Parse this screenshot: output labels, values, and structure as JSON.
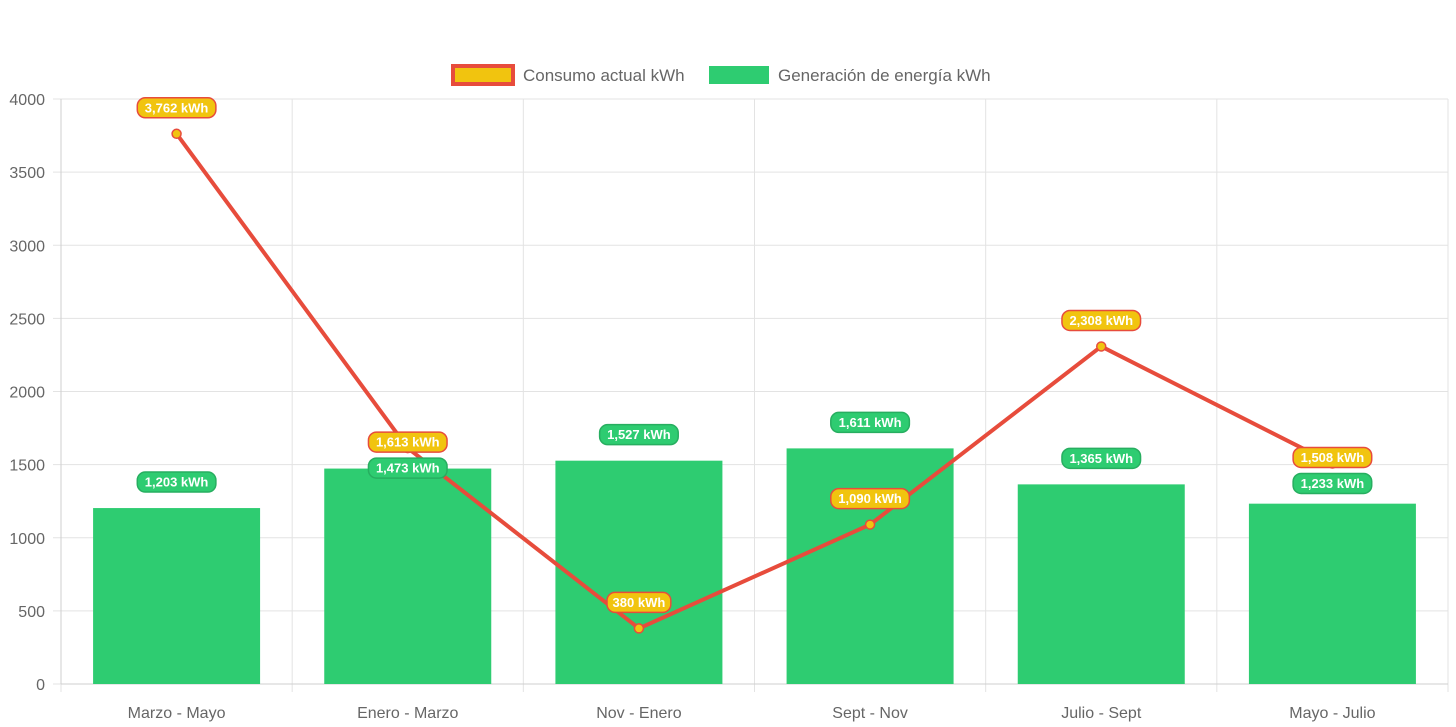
{
  "chart_data": {
    "type": "bar",
    "categories": [
      "Marzo - Mayo",
      "Enero - Marzo",
      "Nov - Enero",
      "Sept - Nov",
      "Julio - Sept",
      "Mayo - Julio"
    ],
    "series": [
      {
        "name": "Consumo actual kWh",
        "type": "line",
        "values": [
          3762,
          1613,
          380,
          1090,
          2308,
          1508
        ],
        "labels": [
          "3,762 kWh",
          "1,613 kWh",
          "380 kWh",
          "1,090 kWh",
          "2,308 kWh",
          "1,508 kWh"
        ],
        "color": "#e74c3c",
        "fill_color": "#f1c40f"
      },
      {
        "name": "Generación de energía kWh",
        "type": "bar",
        "values": [
          1203,
          1473,
          1527,
          1611,
          1365,
          1233
        ],
        "labels": [
          "1,203 kWh",
          "1,473 kWh",
          "1,527 kWh",
          "1,611 kWh",
          "1,365 kWh",
          "1,233 kWh"
        ],
        "color": "#2ecc71"
      }
    ],
    "ylim": [
      0,
      4000
    ],
    "yticks": [
      0,
      500,
      1000,
      1500,
      2000,
      2500,
      3000,
      3500,
      4000
    ],
    "grid": true,
    "legend_position": "top-center",
    "title": "",
    "xlabel": "",
    "ylabel": ""
  }
}
